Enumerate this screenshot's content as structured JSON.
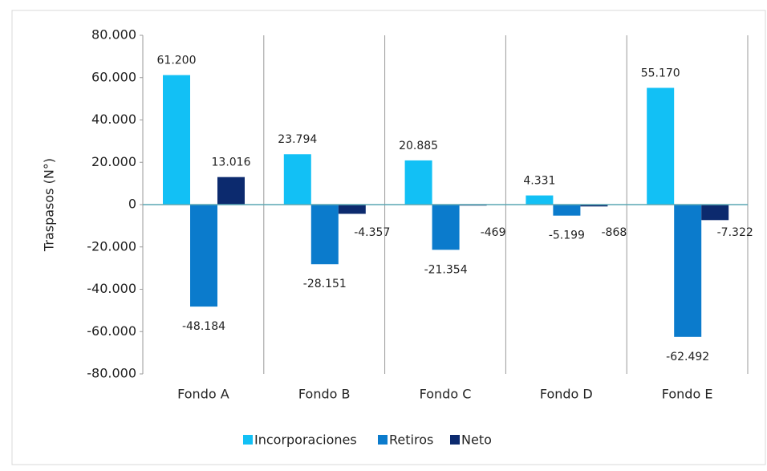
{
  "chart_data": {
    "type": "bar",
    "y_axis_label": "Traspasos (N°)",
    "categories": [
      "Fondo A",
      "Fondo B",
      "Fondo C",
      "Fondo D",
      "Fondo E"
    ],
    "series": [
      {
        "name": "Incorporaciones",
        "color": "#12c0f5",
        "values": [
          61200,
          23794,
          20885,
          4331,
          55170
        ],
        "value_labels": [
          "61.200",
          "23.794",
          "20.885",
          "4.331",
          "55.170"
        ]
      },
      {
        "name": "Retiros",
        "color": "#0b7bcc",
        "values": [
          -48184,
          -28151,
          -21354,
          -5199,
          -62492
        ],
        "value_labels": [
          "-48.184",
          "-28.151",
          "-21.354",
          "-5.199",
          "-62.492"
        ]
      },
      {
        "name": "Neto",
        "color": "#0c2a6e",
        "values": [
          13016,
          -4357,
          -469,
          -868,
          -7322
        ],
        "value_labels": [
          "13.016",
          "-4.357",
          "-469",
          "-868",
          "-7.322"
        ]
      }
    ],
    "ylim": [
      -80000,
      80000
    ],
    "yticks": [
      {
        "value": -80000,
        "label": "-80.000"
      },
      {
        "value": -60000,
        "label": "-60.000"
      },
      {
        "value": -40000,
        "label": "-40.000"
      },
      {
        "value": -20000,
        "label": "-20.000"
      },
      0,
      {
        "value": 20000,
        "label": "20.000"
      },
      {
        "value": 40000,
        "label": "40.000"
      },
      {
        "value": 60000,
        "label": "60.000"
      },
      {
        "value": 80000,
        "label": "80.000"
      }
    ],
    "legend": "bottom"
  }
}
